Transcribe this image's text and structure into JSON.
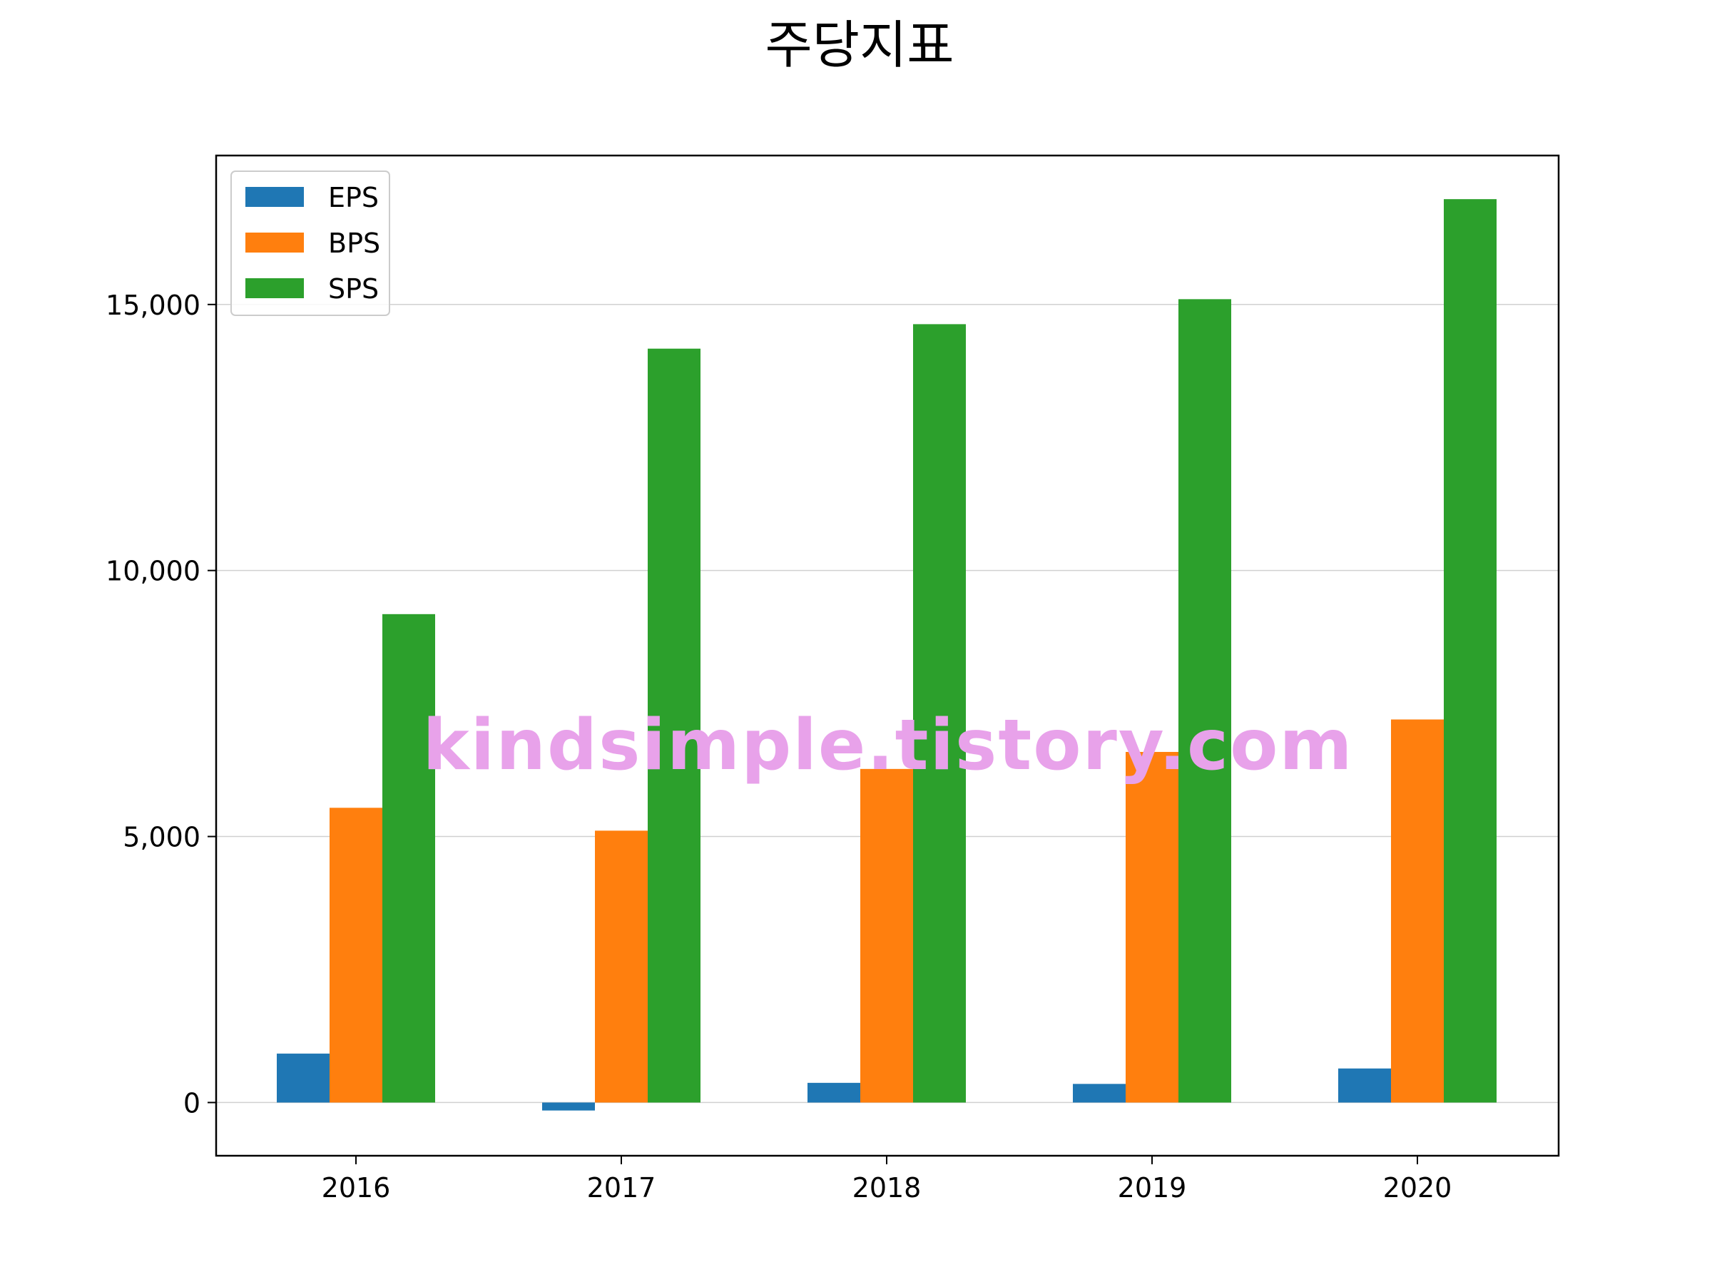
{
  "chart_data": {
    "type": "bar",
    "title": "주당지표",
    "xlabel": "",
    "ylabel": "",
    "categories": [
      "2016",
      "2017",
      "2018",
      "2019",
      "2020"
    ],
    "series": [
      {
        "name": "EPS",
        "color": "#1f77b4",
        "values": [
          920,
          -150,
          370,
          350,
          640
        ]
      },
      {
        "name": "BPS",
        "color": "#ff7f0e",
        "values": [
          5540,
          5110,
          6270,
          6590,
          7200
        ]
      },
      {
        "name": "SPS",
        "color": "#2ca02c",
        "values": [
          9180,
          14170,
          14630,
          15100,
          16980
        ]
      }
    ],
    "ylim": [
      -1000,
      17800
    ],
    "yticks": [
      0,
      5000,
      10000,
      15000
    ],
    "ytick_labels": [
      "0",
      "5,000",
      "10,000",
      "15,000"
    ],
    "grid": "y",
    "legend": "top-left"
  },
  "watermark": "kindsimple.tistory.com",
  "watermark_color": "#e8a2ea"
}
